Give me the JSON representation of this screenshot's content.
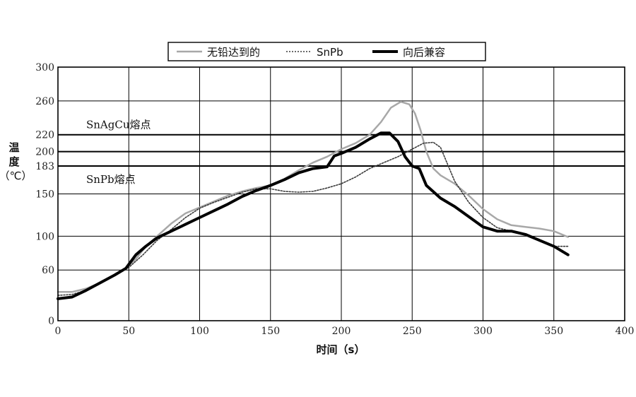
{
  "chart_data": {
    "type": "line",
    "xlabel": "时间（s）",
    "ylabel_chars": [
      "温",
      "度",
      "（℃）"
    ],
    "xlim": [
      0,
      400
    ],
    "ylim": [
      0,
      300
    ],
    "xticks": [
      0,
      50,
      100,
      150,
      200,
      250,
      300,
      350,
      400
    ],
    "yticks": [
      0,
      60,
      100,
      150,
      183,
      200,
      220,
      260,
      300
    ],
    "grid": true,
    "legend_position": "top-center",
    "reference_lines": [
      {
        "y": 220,
        "label": "SnAgCu熔点"
      },
      {
        "y": 200,
        "label": ""
      },
      {
        "y": 183,
        "label": "SnPb熔点"
      }
    ],
    "series": [
      {
        "name": "无铅达到的",
        "style": "solid",
        "color": "#a8a8a8",
        "width": 2.5,
        "points": [
          [
            0,
            34
          ],
          [
            10,
            34
          ],
          [
            20,
            38
          ],
          [
            30,
            45
          ],
          [
            40,
            54
          ],
          [
            48,
            62
          ],
          [
            55,
            73
          ],
          [
            62,
            88
          ],
          [
            70,
            100
          ],
          [
            80,
            115
          ],
          [
            90,
            127
          ],
          [
            100,
            134
          ],
          [
            110,
            141
          ],
          [
            120,
            148
          ],
          [
            130,
            153
          ],
          [
            140,
            157
          ],
          [
            150,
            160
          ],
          [
            160,
            168
          ],
          [
            170,
            178
          ],
          [
            180,
            187
          ],
          [
            190,
            194
          ],
          [
            200,
            203
          ],
          [
            210,
            210
          ],
          [
            220,
            220
          ],
          [
            228,
            235
          ],
          [
            235,
            252
          ],
          [
            242,
            259
          ],
          [
            248,
            256
          ],
          [
            252,
            245
          ],
          [
            256,
            225
          ],
          [
            260,
            200
          ],
          [
            265,
            180
          ],
          [
            270,
            172
          ],
          [
            280,
            162
          ],
          [
            290,
            148
          ],
          [
            300,
            132
          ],
          [
            310,
            120
          ],
          [
            320,
            113
          ],
          [
            330,
            111
          ],
          [
            340,
            109
          ],
          [
            350,
            106
          ],
          [
            360,
            99
          ]
        ]
      },
      {
        "name": "SnPb",
        "style": "dashed",
        "color": "#3a3a3a",
        "width": 1.6,
        "points": [
          [
            0,
            30
          ],
          [
            10,
            31
          ],
          [
            20,
            36
          ],
          [
            30,
            44
          ],
          [
            40,
            54
          ],
          [
            50,
            63
          ],
          [
            60,
            78
          ],
          [
            70,
            95
          ],
          [
            80,
            108
          ],
          [
            90,
            122
          ],
          [
            100,
            133
          ],
          [
            110,
            140
          ],
          [
            120,
            146
          ],
          [
            130,
            152
          ],
          [
            140,
            156
          ],
          [
            150,
            156
          ],
          [
            160,
            153
          ],
          [
            170,
            152
          ],
          [
            180,
            153
          ],
          [
            190,
            157
          ],
          [
            200,
            162
          ],
          [
            210,
            170
          ],
          [
            220,
            180
          ],
          [
            230,
            187
          ],
          [
            240,
            194
          ],
          [
            250,
            203
          ],
          [
            258,
            210
          ],
          [
            265,
            211
          ],
          [
            270,
            205
          ],
          [
            275,
            185
          ],
          [
            280,
            165
          ],
          [
            290,
            140
          ],
          [
            300,
            122
          ],
          [
            310,
            110
          ],
          [
            320,
            106
          ],
          [
            330,
            101
          ],
          [
            340,
            95
          ],
          [
            350,
            88
          ],
          [
            360,
            88
          ]
        ]
      },
      {
        "name": "向后兼容",
        "style": "solid",
        "color": "#000000",
        "width": 4,
        "points": [
          [
            0,
            26
          ],
          [
            10,
            28
          ],
          [
            20,
            36
          ],
          [
            30,
            45
          ],
          [
            40,
            54
          ],
          [
            48,
            62
          ],
          [
            55,
            78
          ],
          [
            62,
            88
          ],
          [
            70,
            98
          ],
          [
            80,
            106
          ],
          [
            90,
            114
          ],
          [
            100,
            122
          ],
          [
            110,
            130
          ],
          [
            120,
            138
          ],
          [
            130,
            147
          ],
          [
            140,
            154
          ],
          [
            150,
            160
          ],
          [
            160,
            167
          ],
          [
            170,
            175
          ],
          [
            180,
            180
          ],
          [
            190,
            182
          ],
          [
            195,
            195
          ],
          [
            200,
            198
          ],
          [
            210,
            205
          ],
          [
            220,
            215
          ],
          [
            228,
            222
          ],
          [
            234,
            222
          ],
          [
            240,
            212
          ],
          [
            245,
            194
          ],
          [
            250,
            183
          ],
          [
            255,
            180
          ],
          [
            260,
            160
          ],
          [
            270,
            145
          ],
          [
            280,
            135
          ],
          [
            290,
            123
          ],
          [
            300,
            111
          ],
          [
            310,
            106
          ],
          [
            320,
            106
          ],
          [
            330,
            102
          ],
          [
            340,
            95
          ],
          [
            350,
            88
          ],
          [
            360,
            78
          ]
        ]
      }
    ]
  }
}
